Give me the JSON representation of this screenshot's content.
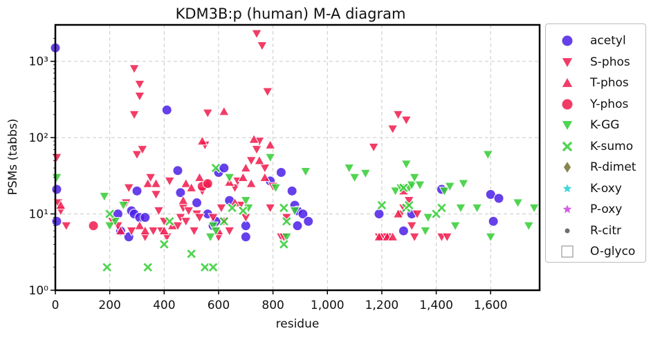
{
  "chart_data": {
    "type": "scatter",
    "title": "KDM3B:p (human) M-A diagram",
    "xlabel": "residue",
    "ylabel": "PSMs (tabbs)",
    "xlim": [
      0,
      1780
    ],
    "ylim": [
      1,
      3000
    ],
    "yscale": "log",
    "x_ticks": [
      0,
      200,
      400,
      600,
      800,
      1000,
      1200,
      1400,
      1600
    ],
    "x_tick_labels": [
      "0",
      "200",
      "400",
      "600",
      "800",
      "1,000",
      "1,200",
      "1,400",
      "1,600"
    ],
    "y_ticks": [
      1,
      10,
      100,
      1000
    ],
    "y_tick_labels": [
      "10⁰",
      "10¹",
      "10²",
      "10³"
    ],
    "grid": true,
    "legend_position": "right",
    "series": [
      {
        "name": "acetyl",
        "marker": "circle",
        "color": "#4b1fe6",
        "points": [
          [
            0,
            1500
          ],
          [
            5,
            21
          ],
          [
            5,
            8
          ],
          [
            230,
            10
          ],
          [
            240,
            6
          ],
          [
            270,
            5
          ],
          [
            280,
            11
          ],
          [
            290,
            10
          ],
          [
            300,
            20
          ],
          [
            310,
            9
          ],
          [
            330,
            9
          ],
          [
            410,
            230
          ],
          [
            450,
            37
          ],
          [
            460,
            19
          ],
          [
            520,
            14
          ],
          [
            560,
            10
          ],
          [
            580,
            7
          ],
          [
            590,
            8
          ],
          [
            600,
            35
          ],
          [
            620,
            40
          ],
          [
            640,
            15
          ],
          [
            700,
            7
          ],
          [
            700,
            5
          ],
          [
            790,
            27
          ],
          [
            830,
            35
          ],
          [
            870,
            20
          ],
          [
            880,
            13
          ],
          [
            890,
            11
          ],
          [
            890,
            7
          ],
          [
            910,
            10
          ],
          [
            930,
            8
          ],
          [
            1190,
            10
          ],
          [
            1280,
            6
          ],
          [
            1310,
            10
          ],
          [
            1420,
            21
          ],
          [
            1600,
            18
          ],
          [
            1610,
            8
          ],
          [
            1630,
            16
          ]
        ]
      },
      {
        "name": "S-phos",
        "marker": "triangle-down",
        "color": "#f0194b",
        "points": [
          [
            5,
            55
          ],
          [
            10,
            14
          ],
          [
            20,
            11
          ],
          [
            40,
            7
          ],
          [
            210,
            8
          ],
          [
            230,
            7
          ],
          [
            260,
            14
          ],
          [
            270,
            22
          ],
          [
            280,
            6
          ],
          [
            290,
            800
          ],
          [
            290,
            200
          ],
          [
            300,
            60
          ],
          [
            310,
            500
          ],
          [
            310,
            350
          ],
          [
            320,
            70
          ],
          [
            330,
            5
          ],
          [
            350,
            30
          ],
          [
            360,
            6
          ],
          [
            370,
            18
          ],
          [
            380,
            11
          ],
          [
            390,
            6
          ],
          [
            400,
            8
          ],
          [
            410,
            5
          ],
          [
            420,
            27
          ],
          [
            450,
            7
          ],
          [
            460,
            9
          ],
          [
            470,
            12
          ],
          [
            480,
            8
          ],
          [
            490,
            11
          ],
          [
            510,
            6
          ],
          [
            520,
            10
          ],
          [
            530,
            9
          ],
          [
            540,
            20
          ],
          [
            550,
            80
          ],
          [
            560,
            210
          ],
          [
            580,
            9
          ],
          [
            600,
            5
          ],
          [
            610,
            12
          ],
          [
            620,
            8
          ],
          [
            640,
            6
          ],
          [
            660,
            22
          ],
          [
            670,
            27
          ],
          [
            680,
            13
          ],
          [
            700,
            9
          ],
          [
            720,
            50
          ],
          [
            740,
            2300
          ],
          [
            740,
            70
          ],
          [
            750,
            90
          ],
          [
            760,
            1600
          ],
          [
            770,
            40
          ],
          [
            780,
            400
          ],
          [
            790,
            12
          ],
          [
            800,
            23
          ],
          [
            830,
            5
          ],
          [
            840,
            5
          ],
          [
            850,
            9
          ],
          [
            1170,
            75
          ],
          [
            1190,
            5
          ],
          [
            1200,
            5
          ],
          [
            1210,
            5
          ],
          [
            1220,
            5
          ],
          [
            1240,
            130
          ],
          [
            1260,
            200
          ],
          [
            1270,
            10
          ],
          [
            1280,
            12
          ],
          [
            1290,
            170
          ],
          [
            1300,
            15
          ],
          [
            1310,
            7
          ],
          [
            1320,
            5
          ],
          [
            1330,
            10
          ],
          [
            1420,
            5
          ],
          [
            1440,
            5
          ]
        ]
      },
      {
        "name": "T-phos",
        "marker": "triangle-up",
        "color": "#f0194b",
        "points": [
          [
            20,
            13
          ],
          [
            240,
            6
          ],
          [
            310,
            7
          ],
          [
            330,
            6
          ],
          [
            340,
            25
          ],
          [
            370,
            25
          ],
          [
            400,
            6
          ],
          [
            430,
            7
          ],
          [
            470,
            15
          ],
          [
            480,
            25
          ],
          [
            500,
            22
          ],
          [
            530,
            30
          ],
          [
            540,
            90
          ],
          [
            560,
            25
          ],
          [
            600,
            6
          ],
          [
            620,
            220
          ],
          [
            640,
            26
          ],
          [
            660,
            14
          ],
          [
            690,
            30
          ],
          [
            700,
            40
          ],
          [
            720,
            25
          ],
          [
            730,
            95
          ],
          [
            750,
            50
          ],
          [
            770,
            30
          ],
          [
            790,
            80
          ],
          [
            1190,
            5
          ],
          [
            1220,
            5
          ],
          [
            1240,
            5
          ],
          [
            1260,
            10
          ],
          [
            1280,
            20
          ]
        ]
      },
      {
        "name": "Y-phos",
        "marker": "circle",
        "color": "#f0194b",
        "points": [
          [
            140,
            7
          ],
          [
            540,
            23
          ],
          [
            560,
            25
          ]
        ]
      },
      {
        "name": "K-GG",
        "marker": "triangle-down",
        "color": "#33cc33",
        "points": [
          [
            5,
            30
          ],
          [
            180,
            17
          ],
          [
            200,
            7
          ],
          [
            220,
            8
          ],
          [
            250,
            13
          ],
          [
            570,
            5
          ],
          [
            580,
            7
          ],
          [
            590,
            6
          ],
          [
            640,
            30
          ],
          [
            700,
            15
          ],
          [
            710,
            12
          ],
          [
            790,
            55
          ],
          [
            810,
            22
          ],
          [
            850,
            5
          ],
          [
            880,
            11
          ],
          [
            920,
            36
          ],
          [
            1080,
            40
          ],
          [
            1100,
            30
          ],
          [
            1140,
            34
          ],
          [
            1250,
            20
          ],
          [
            1270,
            22
          ],
          [
            1290,
            45
          ],
          [
            1300,
            22
          ],
          [
            1310,
            24
          ],
          [
            1320,
            30
          ],
          [
            1340,
            24
          ],
          [
            1360,
            6
          ],
          [
            1370,
            9
          ],
          [
            1430,
            20
          ],
          [
            1450,
            23
          ],
          [
            1470,
            7
          ],
          [
            1490,
            12
          ],
          [
            1500,
            25
          ],
          [
            1550,
            12
          ],
          [
            1590,
            60
          ],
          [
            1600,
            5
          ],
          [
            1700,
            14
          ],
          [
            1740,
            7
          ],
          [
            1760,
            12
          ]
        ]
      },
      {
        "name": "K-sumo",
        "marker": "x",
        "color": "#33cc33",
        "points": [
          [
            190,
            2
          ],
          [
            200,
            10
          ],
          [
            340,
            2
          ],
          [
            400,
            4
          ],
          [
            420,
            8
          ],
          [
            500,
            3
          ],
          [
            550,
            2
          ],
          [
            580,
            2
          ],
          [
            590,
            40
          ],
          [
            620,
            8
          ],
          [
            650,
            12
          ],
          [
            690,
            11
          ],
          [
            840,
            12
          ],
          [
            840,
            4
          ],
          [
            850,
            8
          ],
          [
            1200,
            13
          ],
          [
            1280,
            22
          ],
          [
            1290,
            12
          ],
          [
            1300,
            13
          ],
          [
            1400,
            10
          ],
          [
            1420,
            12
          ]
        ]
      },
      {
        "name": "R-dimet",
        "marker": "diamond",
        "color": "#707030",
        "points": []
      },
      {
        "name": "K-oxy",
        "marker": "star",
        "color": "#22d0d0",
        "points": []
      },
      {
        "name": "P-oxy",
        "marker": "star",
        "color": "#cc44dd",
        "points": []
      },
      {
        "name": "R-citr",
        "marker": "dot",
        "color": "#555555",
        "points": []
      },
      {
        "name": "O-glyco",
        "marker": "square-open",
        "color": "#999999",
        "points": []
      }
    ]
  }
}
